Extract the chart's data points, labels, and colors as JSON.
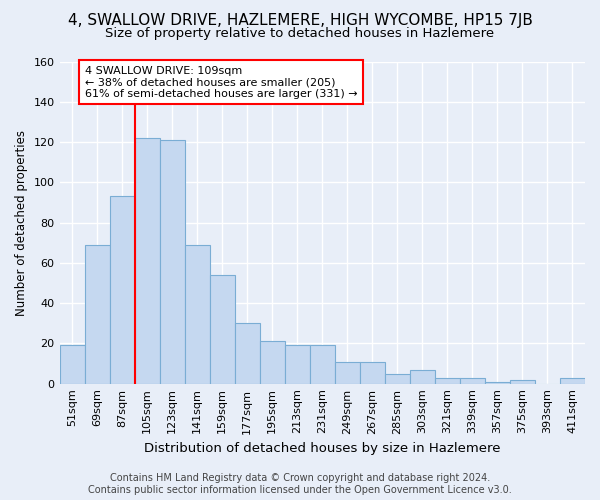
{
  "title": "4, SWALLOW DRIVE, HAZLEMERE, HIGH WYCOMBE, HP15 7JB",
  "subtitle": "Size of property relative to detached houses in Hazlemere",
  "xlabel": "Distribution of detached houses by size in Hazlemere",
  "ylabel": "Number of detached properties",
  "categories": [
    "51sqm",
    "69sqm",
    "87sqm",
    "105sqm",
    "123sqm",
    "141sqm",
    "159sqm",
    "177sqm",
    "195sqm",
    "213sqm",
    "231sqm",
    "249sqm",
    "267sqm",
    "285sqm",
    "303sqm",
    "321sqm",
    "339sqm",
    "357sqm",
    "375sqm",
    "393sqm",
    "411sqm"
  ],
  "values": [
    19,
    69,
    93,
    122,
    121,
    69,
    54,
    30,
    21,
    19,
    19,
    11,
    11,
    5,
    7,
    3,
    3,
    1,
    2,
    0,
    3
  ],
  "bar_color": "#c5d8f0",
  "bar_edge_color": "#7aadd4",
  "vline_x": 2.5,
  "vline_color": "red",
  "annotation_text": "4 SWALLOW DRIVE: 109sqm\n← 38% of detached houses are smaller (205)\n61% of semi-detached houses are larger (331) →",
  "annotation_box_color": "white",
  "annotation_box_edge": "red",
  "ylim": [
    0,
    160
  ],
  "yticks": [
    0,
    20,
    40,
    60,
    80,
    100,
    120,
    140,
    160
  ],
  "bg_color": "#e8eef8",
  "plot_bg_color": "#e8eef8",
  "grid_color": "white",
  "footer": "Contains HM Land Registry data © Crown copyright and database right 2024.\nContains public sector information licensed under the Open Government Licence v3.0.",
  "title_fontsize": 11,
  "subtitle_fontsize": 9.5,
  "xlabel_fontsize": 9.5,
  "ylabel_fontsize": 8.5,
  "tick_fontsize": 8,
  "annot_fontsize": 8,
  "footer_fontsize": 7
}
